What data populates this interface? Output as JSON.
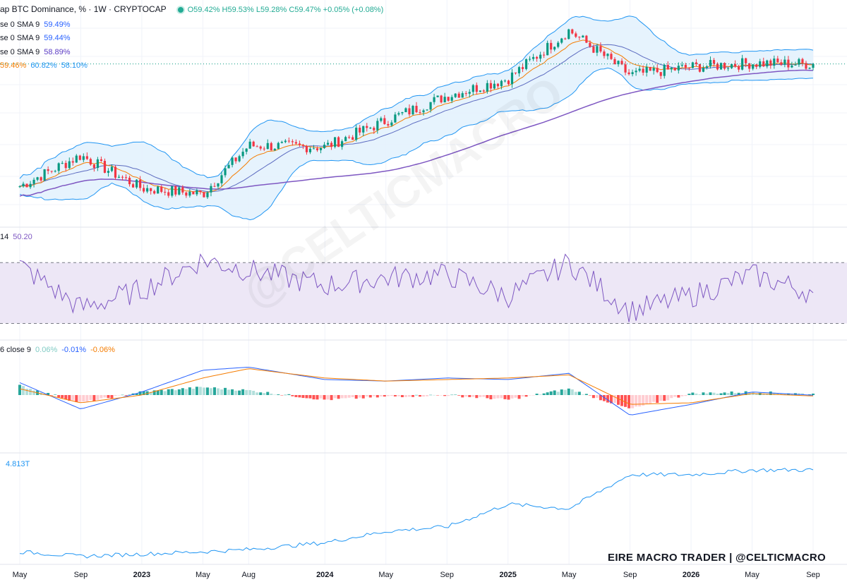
{
  "header": {
    "symbol": "ap BTC Dominance, % · 1W · CRYPTOCAP",
    "ohlc": "O59.42%  H59.53%  L59.28%  C59.47%  +0.05% (+0.08%)",
    "sma_rows": [
      {
        "label": "se 0 SMA 9",
        "value": "59.49%",
        "color": "#2962ff"
      },
      {
        "label": "se 0 SMA 9",
        "value": "59.44%",
        "color": "#2962ff"
      },
      {
        "label": "se 0 SMA 9",
        "value": "58.89%",
        "color": "#5b3cc4"
      }
    ],
    "bb_values": [
      {
        "value": "59.46%",
        "color": "#f57c00"
      },
      {
        "value": "60.82%",
        "color": "#2196f3"
      },
      {
        "value": "58.10%",
        "color": "#2196f3"
      }
    ]
  },
  "rsi_header": {
    "label": "14",
    "value": "50.20"
  },
  "macd_header": {
    "label": "6 close 9",
    "values": [
      {
        "v": "0.06%",
        "color": "#80cbc4"
      },
      {
        "v": "-0.01%",
        "color": "#2962ff"
      },
      {
        "v": "-0.06%",
        "color": "#f57c00"
      }
    ]
  },
  "mcap_header": {
    "value": "4.813T"
  },
  "credit": "EIRE MACRO TRADER | @CELTICMACRO",
  "watermark": "@CELTICMACRO",
  "colors": {
    "up": "#089981",
    "down": "#f23645",
    "sma_long": "#7e57c2",
    "bb": "#2196f3",
    "bb_fill": "#e3f2fd",
    "ema": "#f57c00",
    "rsi": "#7e57c2",
    "rsi_band": "#ede7f6"
  },
  "chart_data": [
    {
      "type": "line",
      "title": "BTC Dominance, % · 1W · CRYPTOCAP",
      "x_axis_labels": [
        "May",
        "Sep",
        "2023",
        "May",
        "Aug",
        "2024",
        "May",
        "Sep",
        "2025",
        "May",
        "Sep",
        "2026",
        "May",
        "Sep"
      ],
      "x": [
        "2022-05",
        "2022-09",
        "2023-01",
        "2023-05",
        "2023-08",
        "2024-01",
        "2024-05",
        "2024-09",
        "2025-01",
        "2025-05",
        "2025-09",
        "2026-01",
        "2026-05",
        "2026-09"
      ],
      "series": [
        {
          "name": "close",
          "values": [
            40.8,
            45.5,
            40.5,
            39.6,
            47.0,
            46.8,
            50.8,
            54.6,
            57.2,
            64.6,
            57.8,
            59.0,
            59.6,
            59.47
          ]
        }
      ],
      "last": {
        "open": 59.42,
        "high": 59.53,
        "low": 59.28,
        "close": 59.47
      }
    },
    {
      "type": "line",
      "title": "RSI 14",
      "x": [
        "2022-05",
        "2022-09",
        "2023-01",
        "2023-05",
        "2023-08",
        "2024-01",
        "2024-05",
        "2024-09",
        "2025-01",
        "2025-05",
        "2025-09",
        "2026-01",
        "2026-05",
        "2026-09"
      ],
      "series": [
        {
          "name": "RSI",
          "values": [
            68,
            40,
            52,
            72,
            65,
            55,
            60,
            62,
            48,
            70,
            38,
            48,
            62,
            50.2
          ]
        }
      ],
      "bands": [
        70,
        30
      ]
    },
    {
      "type": "bar",
      "title": "MACD",
      "x": [
        "2022-05",
        "2022-09",
        "2023-01",
        "2023-05",
        "2023-08",
        "2024-01",
        "2024-05",
        "2024-09",
        "2025-01",
        "2025-05",
        "2025-09",
        "2026-01",
        "2026-05",
        "2026-09"
      ],
      "series": [
        {
          "name": "histogram",
          "values": [
            0.6,
            -0.5,
            0.2,
            0.5,
            0.3,
            -0.3,
            -0.1,
            0.0,
            -0.3,
            0.4,
            -0.9,
            0.1,
            0.2,
            0.06
          ]
        },
        {
          "name": "macd",
          "values": [
            0.8,
            -0.9,
            0.2,
            1.6,
            1.8,
            1.0,
            0.9,
            1.1,
            1.0,
            1.4,
            -1.3,
            -0.6,
            0.2,
            -0.01
          ]
        },
        {
          "name": "signal",
          "values": [
            0.4,
            -0.5,
            0.0,
            1.1,
            1.7,
            1.1,
            0.9,
            1.0,
            1.1,
            1.3,
            -0.6,
            -0.5,
            0.1,
            -0.06
          ]
        }
      ]
    },
    {
      "type": "line",
      "title": "Total Market Cap",
      "x": [
        "2022-05",
        "2022-09",
        "2023-01",
        "2023-05",
        "2023-08",
        "2024-01",
        "2024-05",
        "2024-09",
        "2025-01",
        "2025-05",
        "2025-09",
        "2026-01",
        "2026-05",
        "2026-09"
      ],
      "series": [
        {
          "name": "TOTAL",
          "values": [
            1.2,
            1.0,
            1.1,
            1.2,
            1.3,
            1.6,
            2.1,
            2.3,
            3.3,
            3.1,
            4.6,
            4.6,
            4.8,
            4.813
          ]
        }
      ]
    }
  ]
}
